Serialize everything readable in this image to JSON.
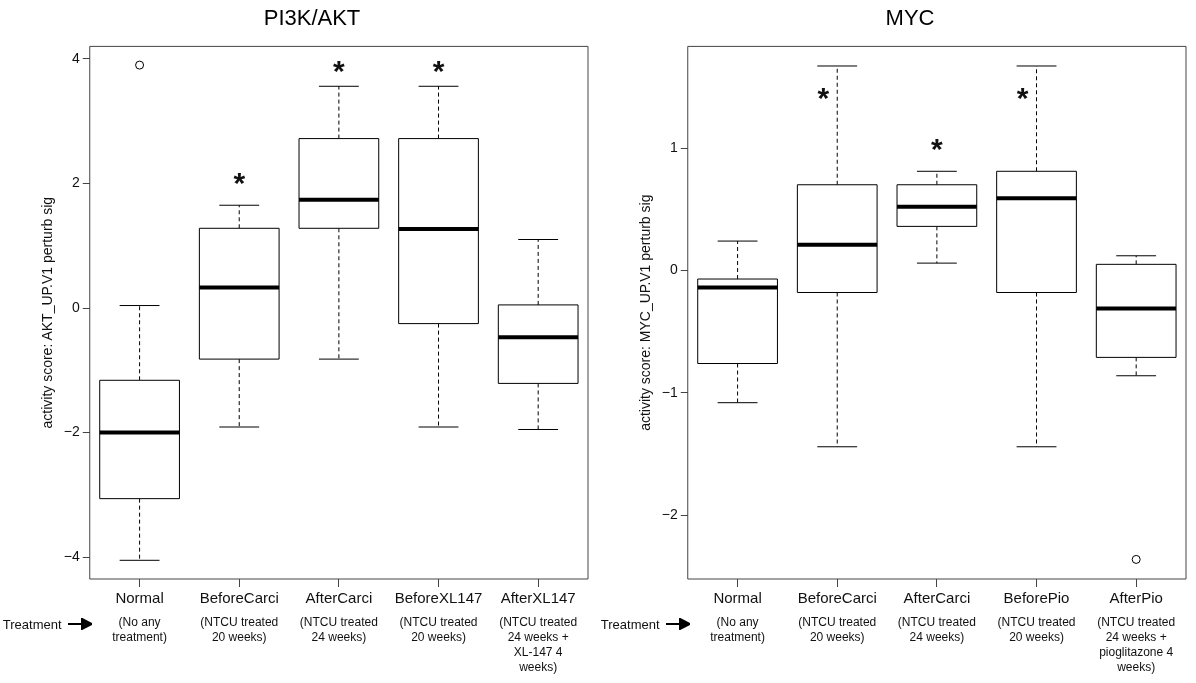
{
  "chart_data": [
    {
      "type": "box",
      "title": "PI3K/AKT",
      "ylabel": "activity score: AKT_UP.V1 perturb sig",
      "categories": [
        "Normal",
        "BeforeCarci",
        "AfterCarci",
        "BeforeXL147",
        "AfterXL147"
      ],
      "boxes": [
        {
          "low": -4.05,
          "q1": -3.06,
          "median": -2.0,
          "q3": -1.16,
          "high": 0.04,
          "outliers": [
            3.9
          ]
        },
        {
          "low": -1.91,
          "q1": -0.82,
          "median": 0.33,
          "q3": 1.28,
          "high": 1.65
        },
        {
          "low": -0.82,
          "q1": 1.28,
          "median": 1.74,
          "q3": 2.72,
          "high": 3.56
        },
        {
          "low": -1.91,
          "q1": -0.25,
          "median": 1.27,
          "q3": 2.72,
          "high": 3.56
        },
        {
          "low": -1.95,
          "q1": -1.21,
          "median": -0.47,
          "q3": 0.05,
          "high": 1.1
        }
      ],
      "ylim": [
        -4.35,
        4.2
      ],
      "yticks": [
        -4,
        -2,
        0,
        2,
        4
      ],
      "annotations": [
        "*",
        "*",
        "*",
        "Treatment",
        "(No any treatment)",
        "(NTCU treated 20 weeks)",
        "(NTCU treated 24 weeks)",
        "(NTCU treated 20 weeks)",
        "(NTCU treated 24 weeks + XL-147 4 weeks)"
      ]
    },
    {
      "type": "box",
      "title": "MYC",
      "ylabel": "activity score: MYC_UP.V1 perturb sig",
      "categories": [
        "Normal",
        "BeforeCarci",
        "AfterCarci",
        "BeforePio",
        "AfterPio"
      ],
      "boxes": [
        {
          "low": -1.08,
          "q1": -0.76,
          "median": -0.14,
          "q3": -0.07,
          "high": 0.24
        },
        {
          "low": -1.44,
          "q1": -0.18,
          "median": 0.21,
          "q3": 0.7,
          "high": 1.67
        },
        {
          "low": 0.06,
          "q1": 0.36,
          "median": 0.52,
          "q3": 0.7,
          "high": 0.81
        },
        {
          "low": -1.44,
          "q1": -0.18,
          "median": 0.59,
          "q3": 0.81,
          "high": 1.67
        },
        {
          "low": -0.86,
          "q1": -0.71,
          "median": -0.31,
          "q3": 0.05,
          "high": 0.12,
          "outliers": [
            -2.36
          ]
        }
      ],
      "ylim": [
        -2.52,
        1.83
      ],
      "yticks": [
        -2,
        -1,
        0,
        1
      ],
      "annotations": [
        "*",
        "*",
        "*",
        "Treatment",
        "(No any treatment)",
        "(NTCU treated 20 weeks)",
        "(NTCU treated 24 weeks)",
        "(NTCU treated 20 weeks)",
        "(NTCU treated 24 weeks + pioglitazone 4 weeks)"
      ]
    }
  ]
}
